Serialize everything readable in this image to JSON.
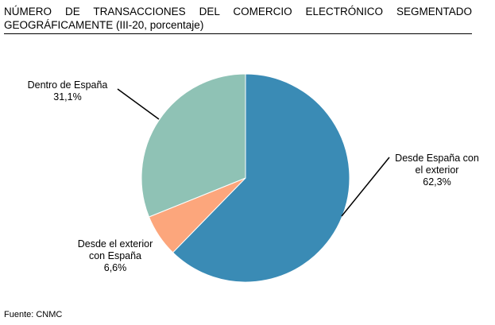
{
  "chart_data": {
    "type": "pie",
    "title": "NÚMERO DE TRANSACCIONES DEL COMERCIO ELECTRÓNICO SEGMENTADO GEOGRÁFICAMENTE (III-20, porcentaje)",
    "categories": [
      "Desde España con\nel exterior",
      "Desde el exterior\ncon España",
      "Dentro de España"
    ],
    "values": [
      62.3,
      6.6,
      31.1
    ],
    "value_labels": [
      "62,3%",
      "6,6%",
      "31,1%"
    ],
    "colors": [
      "#3a8bb5",
      "#fca67c",
      "#8fc2b5"
    ],
    "source": "Fuente: CNMC"
  }
}
